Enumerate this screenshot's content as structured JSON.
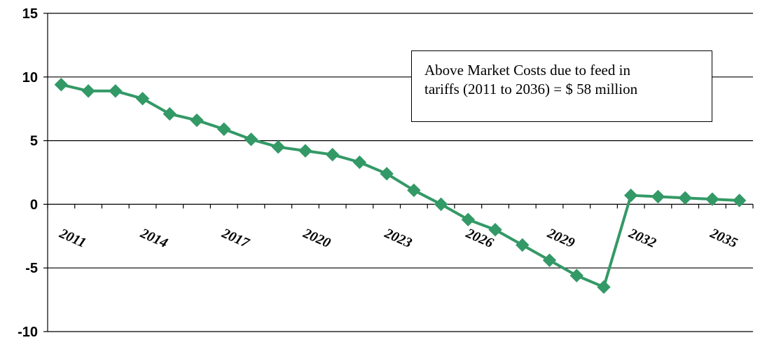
{
  "chart_data": {
    "type": "line",
    "title": "",
    "xlabel": "",
    "ylabel": "",
    "ylim": [
      -10,
      15
    ],
    "yticks": [
      15,
      10,
      5,
      0,
      -5,
      -10
    ],
    "xtick_labels": [
      "2011",
      "2014",
      "2017",
      "2020",
      "2023",
      "2026",
      "2029",
      "2032",
      "2035"
    ],
    "x": [
      2011,
      2012,
      2013,
      2014,
      2015,
      2016,
      2017,
      2018,
      2019,
      2020,
      2021,
      2022,
      2023,
      2024,
      2025,
      2026,
      2027,
      2028,
      2029,
      2030,
      2031,
      2032,
      2033,
      2034,
      2035,
      2036
    ],
    "series": [
      {
        "values": [
          9.4,
          8.9,
          8.9,
          8.3,
          7.1,
          6.6,
          5.9,
          5.1,
          4.5,
          4.2,
          3.9,
          3.3,
          2.4,
          1.1,
          0.0,
          -1.2,
          -2.0,
          -3.2,
          -4.4,
          -5.6,
          -6.5,
          0.7,
          0.6,
          0.5,
          0.4,
          0.3
        ],
        "color": "#339966",
        "marker": "diamond"
      }
    ],
    "annotation": {
      "line1": "Above Market Costs due to feed in",
      "line2": "tariffs (2011 to 2036)  = $ 58 million"
    },
    "grid": "horizontal",
    "legend": "none"
  }
}
